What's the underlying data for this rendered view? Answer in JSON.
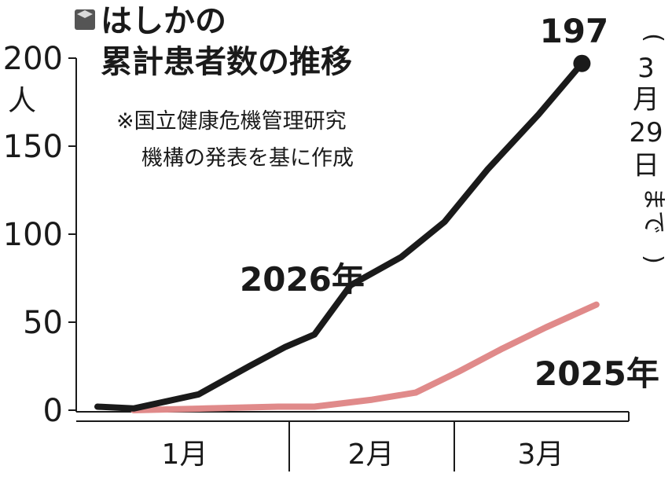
{
  "title": {
    "line1": "はしかの",
    "line2": "累計患者数の推移"
  },
  "note": {
    "line1": "※国立健康危機管理研究",
    "line2": "機構の発表を基に作成"
  },
  "period_note": {
    "open": "(",
    "month": "3",
    "month_unit": "月",
    "day": "29",
    "day_unit": "日",
    "until": "まで",
    "close": ")"
  },
  "colors": {
    "series_2026": "#1a1a1a",
    "series_2025": "#e08a8a",
    "axis": "#1a1a1a",
    "text": "#1a1a1a",
    "title_icon": "#555555"
  },
  "icon": "cube-icon",
  "chart_data": {
    "type": "line",
    "ylabel": "人",
    "ylim": [
      0,
      200
    ],
    "yticks": [
      "0",
      "50",
      "100",
      "150",
      "200"
    ],
    "ytick_values": [
      0,
      50,
      100,
      150,
      200
    ],
    "x_axis_ticks": [
      "1月",
      "2月",
      "3月"
    ],
    "series": [
      {
        "name": "2026年",
        "points": [
          [
            0,
            2
          ],
          [
            0.5,
            1
          ],
          [
            1.4,
            9
          ],
          [
            2.1,
            25
          ],
          [
            2.6,
            36
          ],
          [
            3.0,
            43
          ],
          [
            3.5,
            71
          ],
          [
            4.2,
            87
          ],
          [
            4.8,
            107
          ],
          [
            5.4,
            137
          ],
          [
            6.1,
            168
          ],
          [
            6.7,
            197
          ]
        ],
        "end_label": "197"
      },
      {
        "name": "2025年",
        "points": [
          [
            0.5,
            0
          ],
          [
            1.5,
            1
          ],
          [
            2.5,
            2
          ],
          [
            3.0,
            2
          ],
          [
            3.8,
            6
          ],
          [
            4.4,
            10
          ],
          [
            5.0,
            22
          ],
          [
            5.6,
            35
          ],
          [
            6.2,
            47
          ],
          [
            6.9,
            60
          ]
        ]
      }
    ]
  }
}
